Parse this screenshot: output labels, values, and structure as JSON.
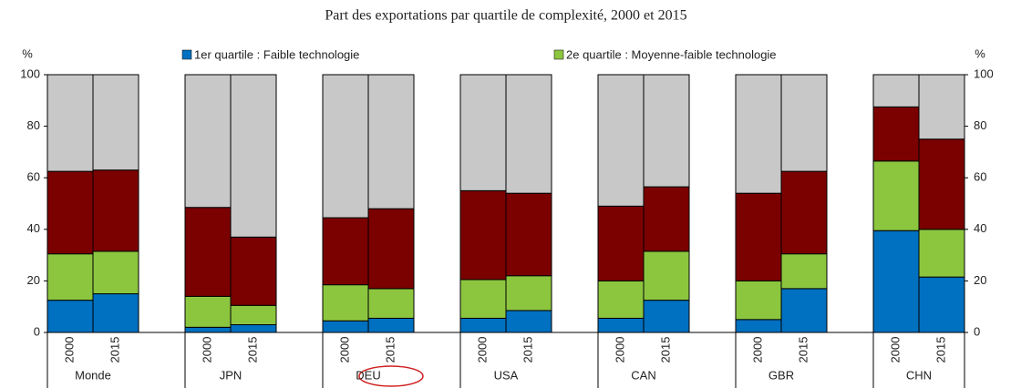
{
  "chart_data": {
    "type": "stacked_bar",
    "title": "Part des exportations par quartile de complexité, 2000 et 2015",
    "y_unit": "%",
    "groups": [
      "Monde",
      "JPN",
      "DEU",
      "USA",
      "CAN",
      "GBR",
      "CHN"
    ],
    "categories": [
      "2000",
      "2015",
      "2000",
      "2015",
      "2000",
      "2015",
      "2000",
      "2015",
      "2000",
      "2015",
      "2000",
      "2015",
      "2000",
      "2015"
    ],
    "series": [
      {
        "name": "1er quartile : Faible technologie",
        "color": "#0070c0",
        "values": [
          12.5,
          15,
          2,
          3,
          4.5,
          5.5,
          5.5,
          8.5,
          5.5,
          12.5,
          5,
          17,
          39.5,
          21.5
        ]
      },
      {
        "name": "2e quartile : Moyenne-faible technologie",
        "color": "#8cc63f",
        "values": [
          18,
          16.5,
          12,
          7.5,
          14,
          11.5,
          15,
          13.5,
          14.5,
          19,
          15,
          13.5,
          27,
          18.5
        ]
      },
      {
        "color": "#7b0000",
        "values": [
          32,
          31.5,
          34.5,
          26.5,
          26,
          31,
          34.5,
          32,
          29,
          25,
          34,
          32,
          21,
          35
        ]
      },
      {
        "color": "#c8c8c8",
        "values": [
          37.5,
          37,
          51.5,
          63,
          55.5,
          52,
          45,
          46,
          51,
          43.5,
          46,
          37.5,
          12.5,
          25
        ]
      }
    ],
    "ylim": [
      0,
      100
    ],
    "yticks": [
      0,
      20,
      40,
      60,
      80,
      100
    ],
    "y2ticks_mirror": true
  }
}
